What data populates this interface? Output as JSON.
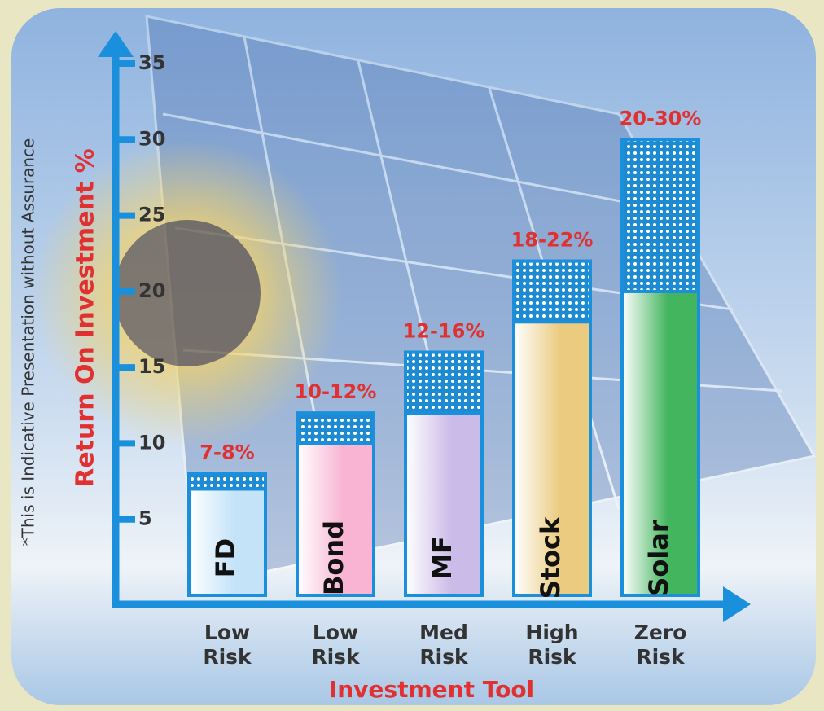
{
  "chart_data": {
    "type": "bar",
    "stacked": true,
    "note": "*This is Indicative Presentation without Assurance",
    "ylabel": "Return On Investment %",
    "xlabel": "Investment Tool",
    "categories": [
      "Low Risk",
      "Low Risk",
      "Med Risk",
      "High Risk",
      "Zero Risk"
    ],
    "bar_names": [
      "FD",
      "Bond",
      "MF",
      "Stock",
      "Solar"
    ],
    "bar_labels": [
      "7-8%",
      "10-12%",
      "12-16%",
      "18-22%",
      "20-30%"
    ],
    "series": [
      {
        "values": [
          7,
          10,
          12,
          18,
          20
        ],
        "colors": [
          "#c4e3f8",
          "#f8b4d2",
          "#cbbbe8",
          "#ebcb7f",
          "#43b55e"
        ]
      },
      {
        "values": [
          1,
          2,
          4,
          4,
          10
        ],
        "color": "#1e8ad2"
      }
    ],
    "ylim": [
      0,
      35
    ],
    "yticks": [
      5,
      10,
      15,
      20,
      25,
      30,
      35
    ],
    "axis_color": "#1a8fdc",
    "label_color": "#e03030"
  }
}
